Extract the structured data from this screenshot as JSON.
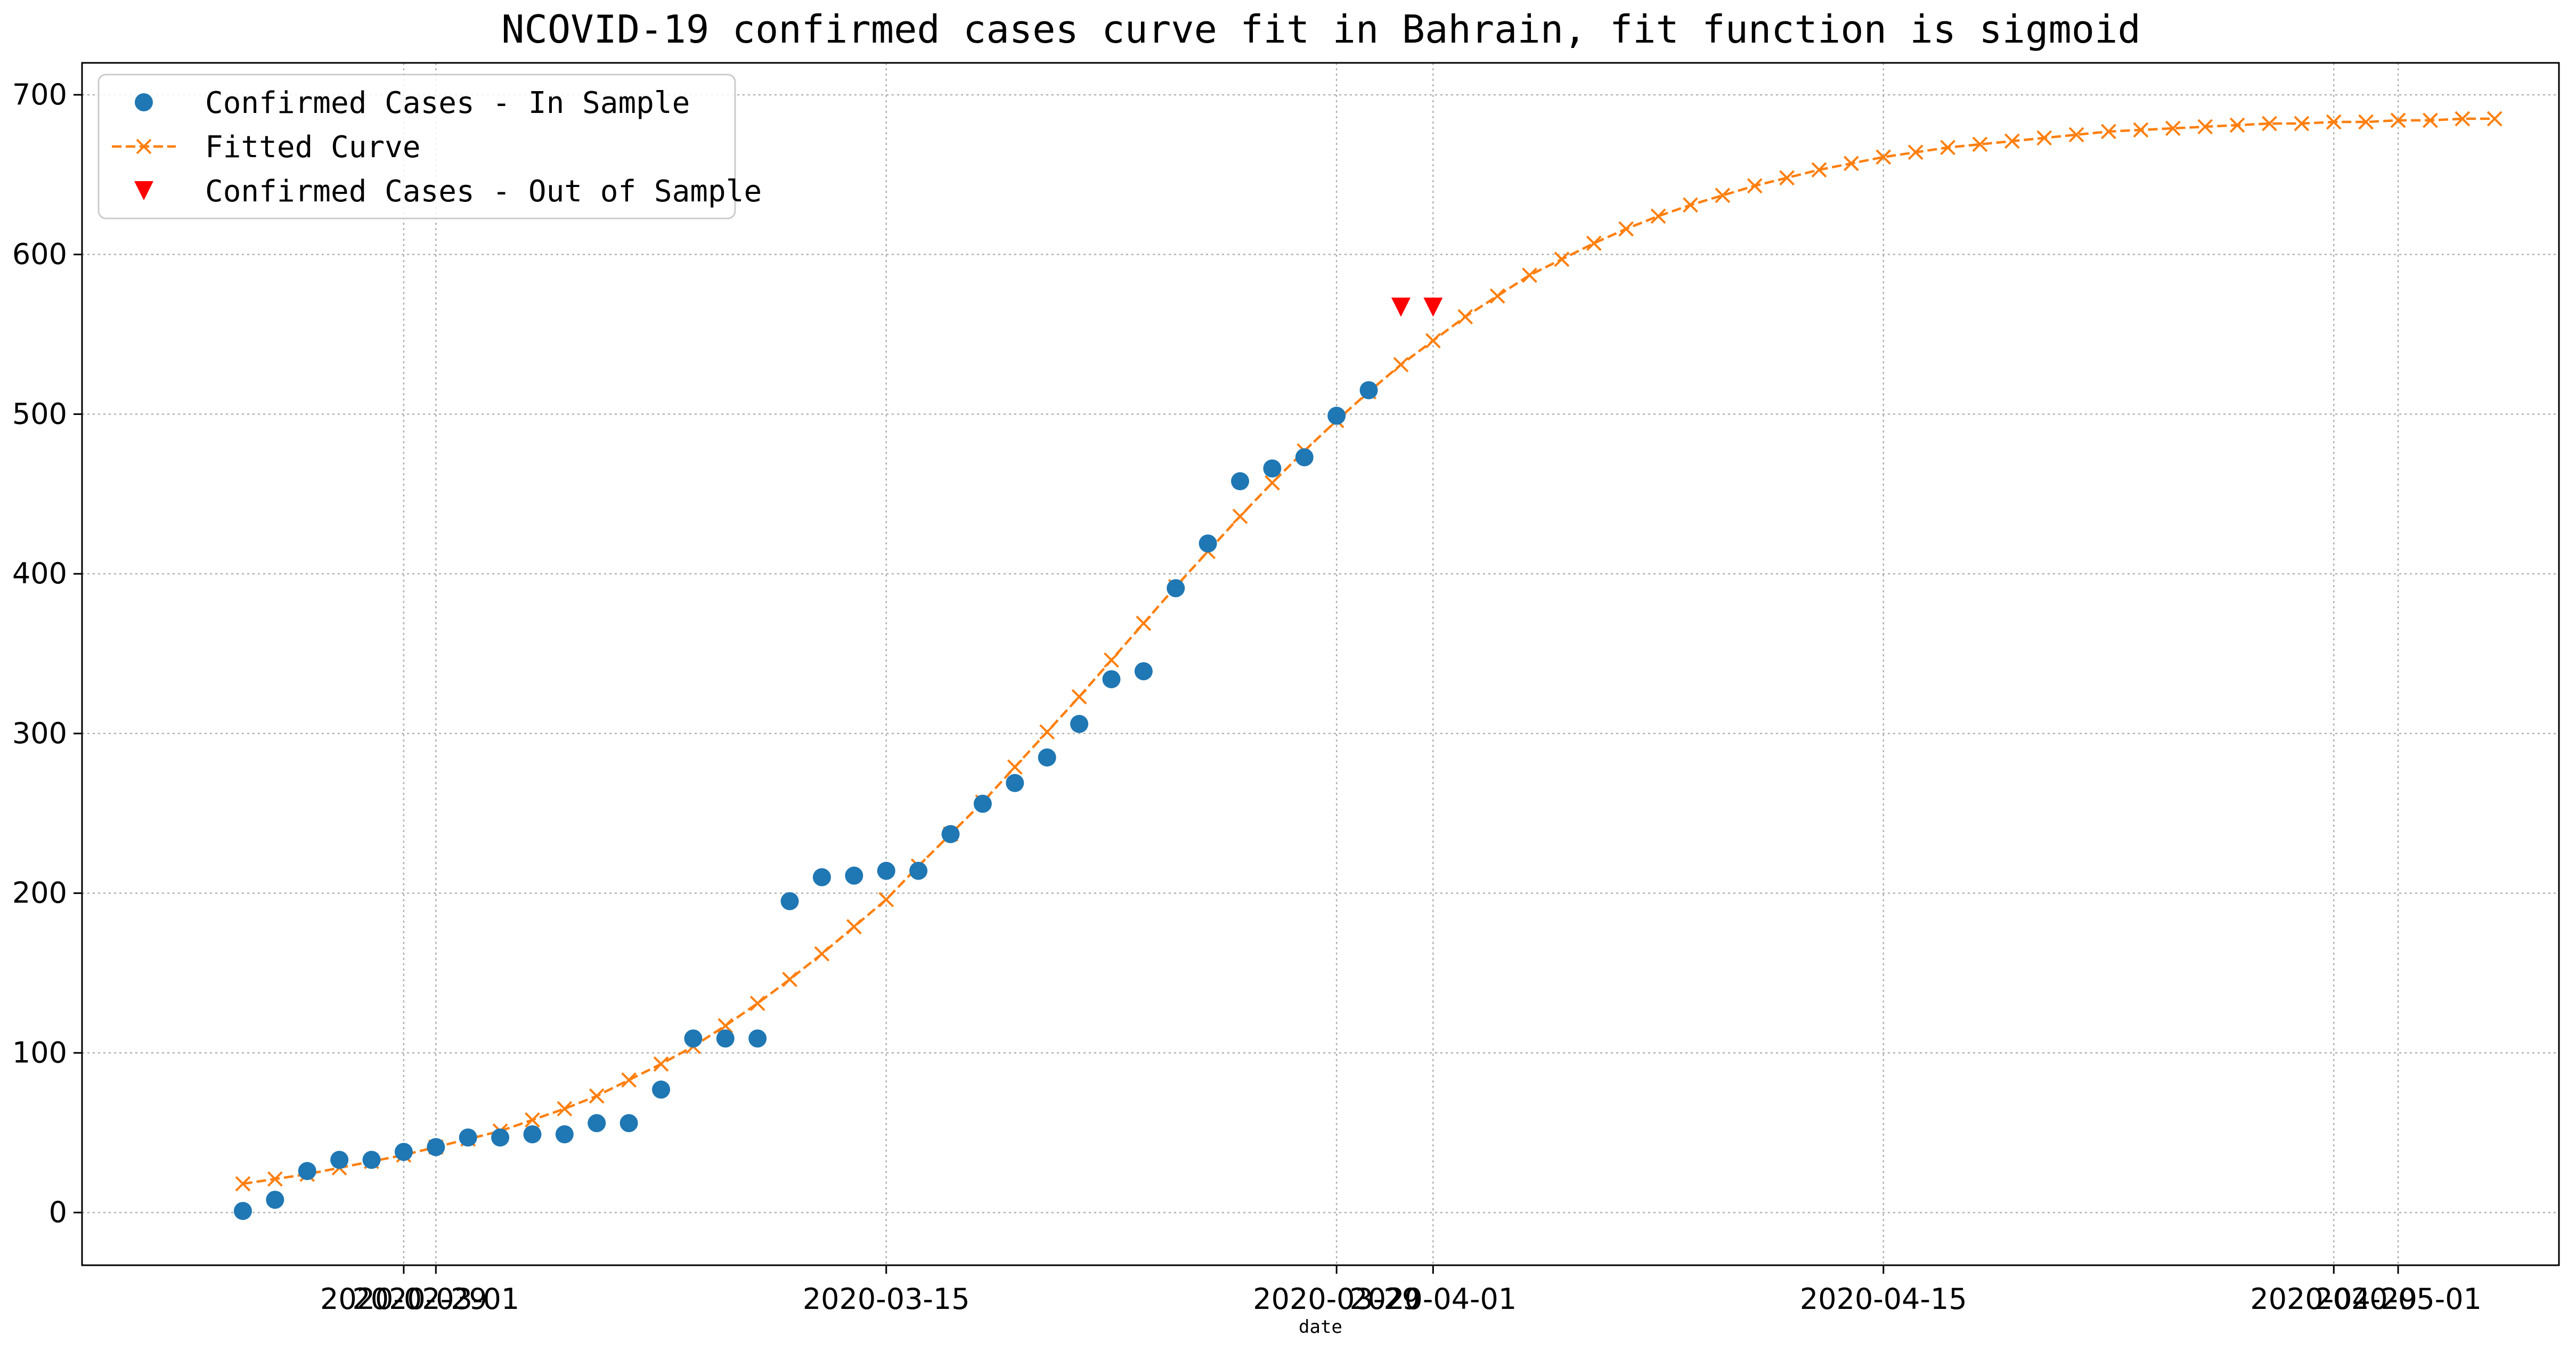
{
  "chart_data": {
    "type": "scatter",
    "title": "NCOVID-19 confirmed cases curve fit in Bahrain, fit function is sigmoid",
    "xlabel": "date",
    "ylabel": "",
    "ylim": [
      -33,
      720
    ],
    "xlim": [
      "2020-02-19",
      "2020-05-06"
    ],
    "x_tick_labels": [
      "2020-02-29",
      "2020-03-01",
      "2020-03-15",
      "2020-03-29",
      "2020-04-01",
      "2020-04-15",
      "2020-04-29",
      "2020-05-01"
    ],
    "y_ticks": [
      0,
      100,
      200,
      300,
      400,
      500,
      600,
      700
    ],
    "grid": true,
    "legend_position": "top-left",
    "colors": {
      "in_sample": "#1f77b4",
      "fitted": "#ff7f0e",
      "out_sample": "#ff0000"
    },
    "series": [
      {
        "name": "Confirmed Cases - In Sample",
        "marker": "circle",
        "x": [
          "2020-02-24",
          "2020-02-25",
          "2020-02-26",
          "2020-02-27",
          "2020-02-28",
          "2020-02-29",
          "2020-03-01",
          "2020-03-02",
          "2020-03-03",
          "2020-03-04",
          "2020-03-05",
          "2020-03-06",
          "2020-03-07",
          "2020-03-08",
          "2020-03-09",
          "2020-03-10",
          "2020-03-11",
          "2020-03-12",
          "2020-03-13",
          "2020-03-14",
          "2020-03-15",
          "2020-03-16",
          "2020-03-17",
          "2020-03-18",
          "2020-03-19",
          "2020-03-20",
          "2020-03-21",
          "2020-03-22",
          "2020-03-23",
          "2020-03-24",
          "2020-03-25",
          "2020-03-26",
          "2020-03-27",
          "2020-03-28",
          "2020-03-29",
          "2020-03-30"
        ],
        "y": [
          1,
          8,
          26,
          33,
          33,
          38,
          41,
          47,
          47,
          49,
          49,
          56,
          56,
          77,
          109,
          109,
          109,
          195,
          210,
          211,
          214,
          214,
          237,
          256,
          269,
          285,
          306,
          334,
          339,
          391,
          419,
          458,
          466,
          473,
          499,
          515
        ]
      },
      {
        "name": "Fitted Curve",
        "marker": "x",
        "linestyle": "dashed",
        "x": [
          "2020-02-24",
          "2020-02-25",
          "2020-02-26",
          "2020-02-27",
          "2020-02-28",
          "2020-02-29",
          "2020-03-01",
          "2020-03-02",
          "2020-03-03",
          "2020-03-04",
          "2020-03-05",
          "2020-03-06",
          "2020-03-07",
          "2020-03-08",
          "2020-03-09",
          "2020-03-10",
          "2020-03-11",
          "2020-03-12",
          "2020-03-13",
          "2020-03-14",
          "2020-03-15",
          "2020-03-16",
          "2020-03-17",
          "2020-03-18",
          "2020-03-19",
          "2020-03-20",
          "2020-03-21",
          "2020-03-22",
          "2020-03-23",
          "2020-03-24",
          "2020-03-25",
          "2020-03-26",
          "2020-03-27",
          "2020-03-28",
          "2020-03-29",
          "2020-03-30",
          "2020-03-31",
          "2020-04-01",
          "2020-04-02",
          "2020-04-03",
          "2020-04-04",
          "2020-04-05",
          "2020-04-06",
          "2020-04-07",
          "2020-04-08",
          "2020-04-09",
          "2020-04-10",
          "2020-04-11",
          "2020-04-12",
          "2020-04-13",
          "2020-04-14",
          "2020-04-15",
          "2020-04-16",
          "2020-04-17",
          "2020-04-18",
          "2020-04-19",
          "2020-04-20",
          "2020-04-21",
          "2020-04-22",
          "2020-04-23",
          "2020-04-24",
          "2020-04-25",
          "2020-04-26",
          "2020-04-27",
          "2020-04-28",
          "2020-04-29",
          "2020-04-30",
          "2020-05-01",
          "2020-05-02",
          "2020-05-03",
          "2020-05-04"
        ],
        "y": [
          18,
          21,
          24,
          28,
          32,
          36,
          41,
          46,
          51,
          58,
          65,
          73,
          83,
          93,
          104,
          117,
          131,
          146,
          162,
          179,
          196,
          217,
          237,
          257,
          279,
          301,
          323,
          346,
          369,
          392,
          414,
          436,
          457,
          477,
          496,
          514,
          531,
          546,
          561,
          574,
          587,
          597,
          607,
          616,
          624,
          631,
          637,
          643,
          648,
          653,
          657,
          661,
          664,
          667,
          669,
          671,
          673,
          675,
          677,
          678,
          679,
          680,
          681,
          682,
          682,
          683,
          683,
          684,
          684,
          685,
          685
        ]
      },
      {
        "name": "Confirmed Cases - Out of Sample",
        "marker": "triangle-down",
        "x": [
          "2020-03-31",
          "2020-04-01"
        ],
        "y": [
          567,
          567
        ]
      }
    ]
  }
}
